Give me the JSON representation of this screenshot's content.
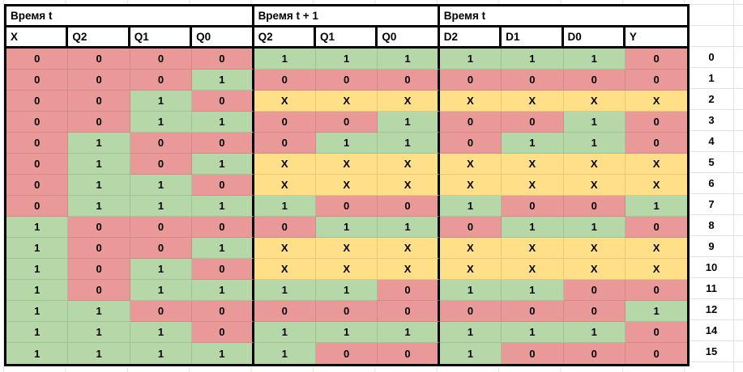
{
  "sheet": {
    "groups": [
      {
        "label": "Время t",
        "columns": [
          "X",
          "Q2",
          "Q1",
          "Q0"
        ]
      },
      {
        "label": "Время t + 1",
        "columns": [
          "Q2",
          "Q1",
          "Q0"
        ]
      },
      {
        "label": "Время t",
        "columns": [
          "D2",
          "D1",
          "D0",
          "Y"
        ]
      }
    ],
    "colors": {
      "red": "#ea9999",
      "green": "#b6d7a8",
      "yellow": "#ffdf87",
      "border": "#000000",
      "gridline": "#e2e2e2",
      "header_bg": "#ffffff"
    },
    "rows": [
      {
        "label": "0",
        "cells": [
          [
            "0",
            "r"
          ],
          [
            "0",
            "r"
          ],
          [
            "0",
            "r"
          ],
          [
            "0",
            "r"
          ],
          [
            "1",
            "g"
          ],
          [
            "1",
            "g"
          ],
          [
            "1",
            "g"
          ],
          [
            "1",
            "g"
          ],
          [
            "1",
            "g"
          ],
          [
            "1",
            "g"
          ],
          [
            "0",
            "r"
          ]
        ]
      },
      {
        "label": "1",
        "cells": [
          [
            "0",
            "r"
          ],
          [
            "0",
            "r"
          ],
          [
            "0",
            "r"
          ],
          [
            "1",
            "g"
          ],
          [
            "0",
            "r"
          ],
          [
            "0",
            "r"
          ],
          [
            "0",
            "r"
          ],
          [
            "0",
            "r"
          ],
          [
            "0",
            "r"
          ],
          [
            "0",
            "r"
          ],
          [
            "0",
            "r"
          ]
        ]
      },
      {
        "label": "2",
        "cells": [
          [
            "0",
            "r"
          ],
          [
            "0",
            "r"
          ],
          [
            "1",
            "g"
          ],
          [
            "0",
            "r"
          ],
          [
            "X",
            "y"
          ],
          [
            "X",
            "y"
          ],
          [
            "X",
            "y"
          ],
          [
            "X",
            "y"
          ],
          [
            "X",
            "y"
          ],
          [
            "X",
            "y"
          ],
          [
            "X",
            "y"
          ]
        ]
      },
      {
        "label": "3",
        "cells": [
          [
            "0",
            "r"
          ],
          [
            "0",
            "r"
          ],
          [
            "1",
            "g"
          ],
          [
            "1",
            "g"
          ],
          [
            "0",
            "r"
          ],
          [
            "0",
            "r"
          ],
          [
            "1",
            "g"
          ],
          [
            "0",
            "r"
          ],
          [
            "0",
            "r"
          ],
          [
            "1",
            "g"
          ],
          [
            "0",
            "r"
          ]
        ]
      },
      {
        "label": "4",
        "cells": [
          [
            "0",
            "r"
          ],
          [
            "1",
            "g"
          ],
          [
            "0",
            "r"
          ],
          [
            "0",
            "r"
          ],
          [
            "0",
            "r"
          ],
          [
            "1",
            "g"
          ],
          [
            "1",
            "g"
          ],
          [
            "0",
            "r"
          ],
          [
            "1",
            "g"
          ],
          [
            "1",
            "g"
          ],
          [
            "0",
            "r"
          ]
        ]
      },
      {
        "label": "5",
        "cells": [
          [
            "0",
            "r"
          ],
          [
            "1",
            "g"
          ],
          [
            "0",
            "r"
          ],
          [
            "1",
            "g"
          ],
          [
            "X",
            "y"
          ],
          [
            "X",
            "y"
          ],
          [
            "X",
            "y"
          ],
          [
            "X",
            "y"
          ],
          [
            "X",
            "y"
          ],
          [
            "X",
            "y"
          ],
          [
            "X",
            "y"
          ]
        ]
      },
      {
        "label": "6",
        "cells": [
          [
            "0",
            "r"
          ],
          [
            "1",
            "g"
          ],
          [
            "1",
            "g"
          ],
          [
            "0",
            "r"
          ],
          [
            "X",
            "y"
          ],
          [
            "X",
            "y"
          ],
          [
            "X",
            "y"
          ],
          [
            "X",
            "y"
          ],
          [
            "X",
            "y"
          ],
          [
            "X",
            "y"
          ],
          [
            "X",
            "y"
          ]
        ]
      },
      {
        "label": "7",
        "cells": [
          [
            "0",
            "r"
          ],
          [
            "1",
            "g"
          ],
          [
            "1",
            "g"
          ],
          [
            "1",
            "g"
          ],
          [
            "1",
            "g"
          ],
          [
            "0",
            "r"
          ],
          [
            "0",
            "r"
          ],
          [
            "1",
            "g"
          ],
          [
            "0",
            "r"
          ],
          [
            "0",
            "r"
          ],
          [
            "1",
            "g"
          ]
        ]
      },
      {
        "label": "8",
        "cells": [
          [
            "1",
            "g"
          ],
          [
            "0",
            "r"
          ],
          [
            "0",
            "r"
          ],
          [
            "0",
            "r"
          ],
          [
            "0",
            "r"
          ],
          [
            "1",
            "g"
          ],
          [
            "1",
            "g"
          ],
          [
            "0",
            "r"
          ],
          [
            "1",
            "g"
          ],
          [
            "1",
            "g"
          ],
          [
            "0",
            "r"
          ]
        ]
      },
      {
        "label": "9",
        "cells": [
          [
            "1",
            "g"
          ],
          [
            "0",
            "r"
          ],
          [
            "0",
            "r"
          ],
          [
            "1",
            "g"
          ],
          [
            "X",
            "y"
          ],
          [
            "X",
            "y"
          ],
          [
            "X",
            "y"
          ],
          [
            "X",
            "y"
          ],
          [
            "X",
            "y"
          ],
          [
            "X",
            "y"
          ],
          [
            "X",
            "y"
          ]
        ]
      },
      {
        "label": "10",
        "cells": [
          [
            "1",
            "g"
          ],
          [
            "0",
            "r"
          ],
          [
            "1",
            "g"
          ],
          [
            "0",
            "r"
          ],
          [
            "X",
            "y"
          ],
          [
            "X",
            "y"
          ],
          [
            "X",
            "y"
          ],
          [
            "X",
            "y"
          ],
          [
            "X",
            "y"
          ],
          [
            "X",
            "y"
          ],
          [
            "X",
            "y"
          ]
        ]
      },
      {
        "label": "11",
        "cells": [
          [
            "1",
            "g"
          ],
          [
            "0",
            "r"
          ],
          [
            "1",
            "g"
          ],
          [
            "1",
            "g"
          ],
          [
            "1",
            "g"
          ],
          [
            "1",
            "g"
          ],
          [
            "0",
            "r"
          ],
          [
            "1",
            "g"
          ],
          [
            "1",
            "g"
          ],
          [
            "0",
            "r"
          ],
          [
            "0",
            "r"
          ]
        ]
      },
      {
        "label": "12",
        "cells": [
          [
            "1",
            "g"
          ],
          [
            "1",
            "g"
          ],
          [
            "0",
            "r"
          ],
          [
            "0",
            "r"
          ],
          [
            "0",
            "r"
          ],
          [
            "0",
            "r"
          ],
          [
            "0",
            "r"
          ],
          [
            "0",
            "r"
          ],
          [
            "0",
            "r"
          ],
          [
            "0",
            "r"
          ],
          [
            "1",
            "g"
          ]
        ]
      },
      {
        "label": "14",
        "cells": [
          [
            "1",
            "g"
          ],
          [
            "1",
            "g"
          ],
          [
            "1",
            "g"
          ],
          [
            "0",
            "r"
          ],
          [
            "1",
            "g"
          ],
          [
            "1",
            "g"
          ],
          [
            "1",
            "g"
          ],
          [
            "1",
            "g"
          ],
          [
            "1",
            "g"
          ],
          [
            "1",
            "g"
          ],
          [
            "0",
            "r"
          ]
        ]
      },
      {
        "label": "15",
        "cells": [
          [
            "1",
            "g"
          ],
          [
            "1",
            "g"
          ],
          [
            "1",
            "g"
          ],
          [
            "1",
            "g"
          ],
          [
            "1",
            "g"
          ],
          [
            "0",
            "r"
          ],
          [
            "0",
            "r"
          ],
          [
            "1",
            "g"
          ],
          [
            "0",
            "r"
          ],
          [
            "0",
            "r"
          ],
          [
            "0",
            "r"
          ]
        ]
      }
    ]
  }
}
